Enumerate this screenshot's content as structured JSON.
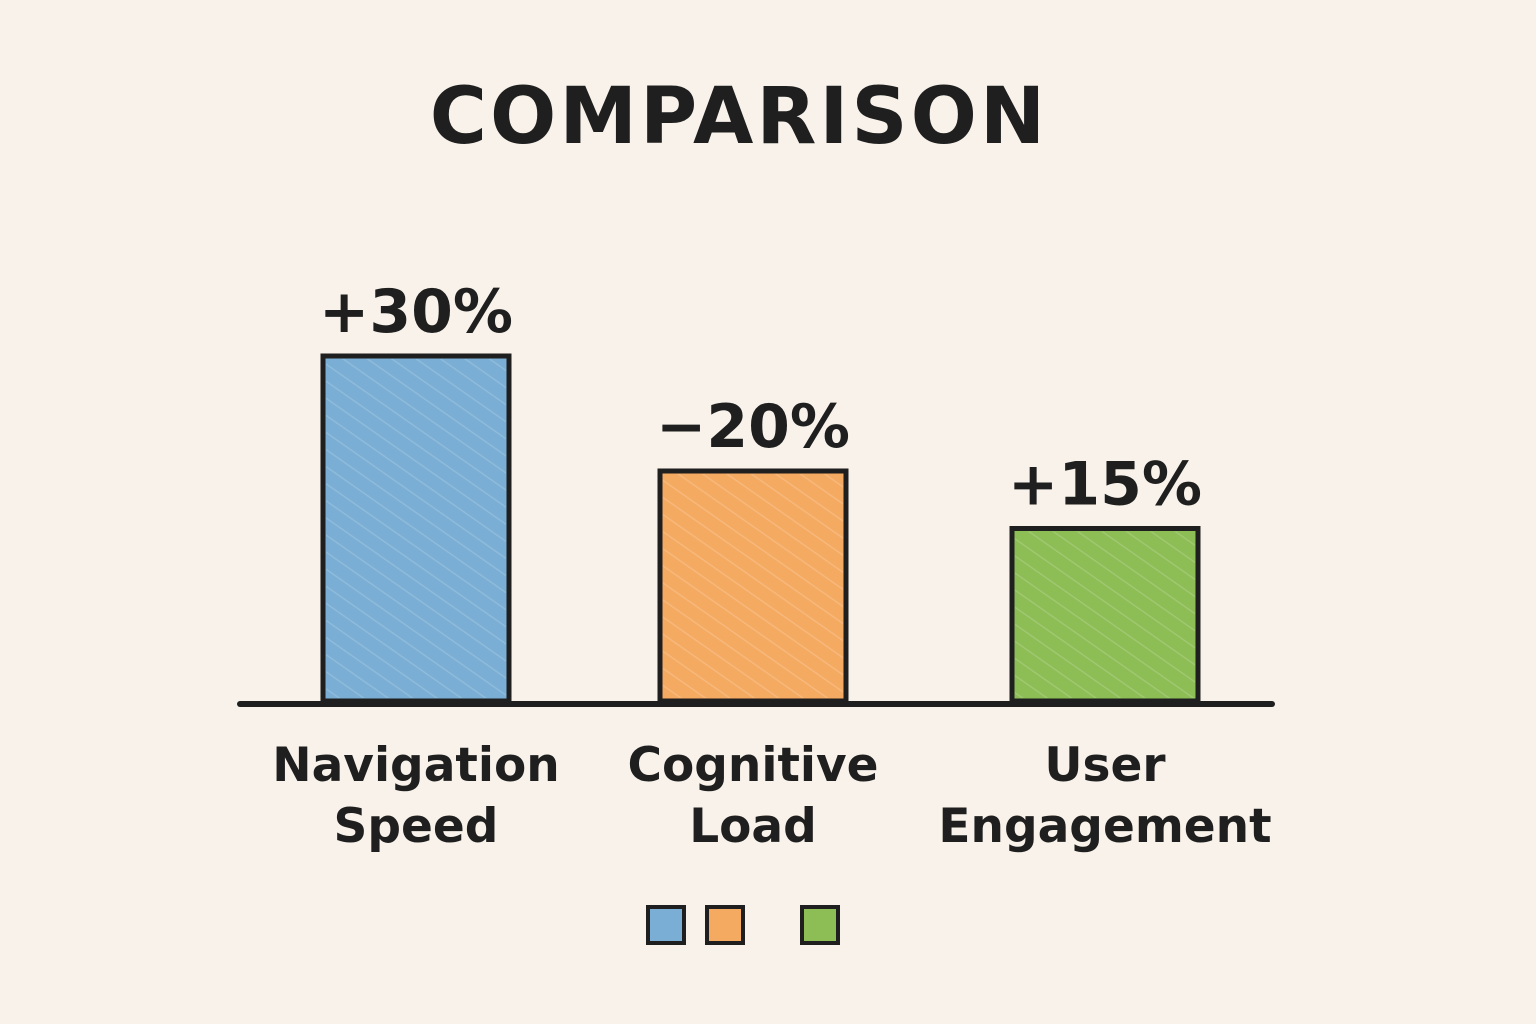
{
  "chart_data": {
    "type": "bar",
    "title": "COMPARISON",
    "xlabel": "",
    "ylabel": "",
    "grid": false,
    "ylim": [
      0,
      40
    ],
    "categories": [
      [
        "Navigation",
        "Speed"
      ],
      [
        "Cognitive",
        "Load"
      ],
      [
        "User",
        "Engagement"
      ]
    ],
    "values": [
      30,
      20,
      15
    ],
    "data_labels": [
      "+30%",
      "−20%",
      "+15%"
    ],
    "colors": [
      "#7aaed4",
      "#f5aa62",
      "#8dbd55"
    ],
    "stroke_color": "#1f1f1f",
    "legend": {
      "placement": "bottom-center",
      "swatch_colors": [
        "#7aaed4",
        "#f5aa62",
        "#8dbd55"
      ]
    }
  }
}
